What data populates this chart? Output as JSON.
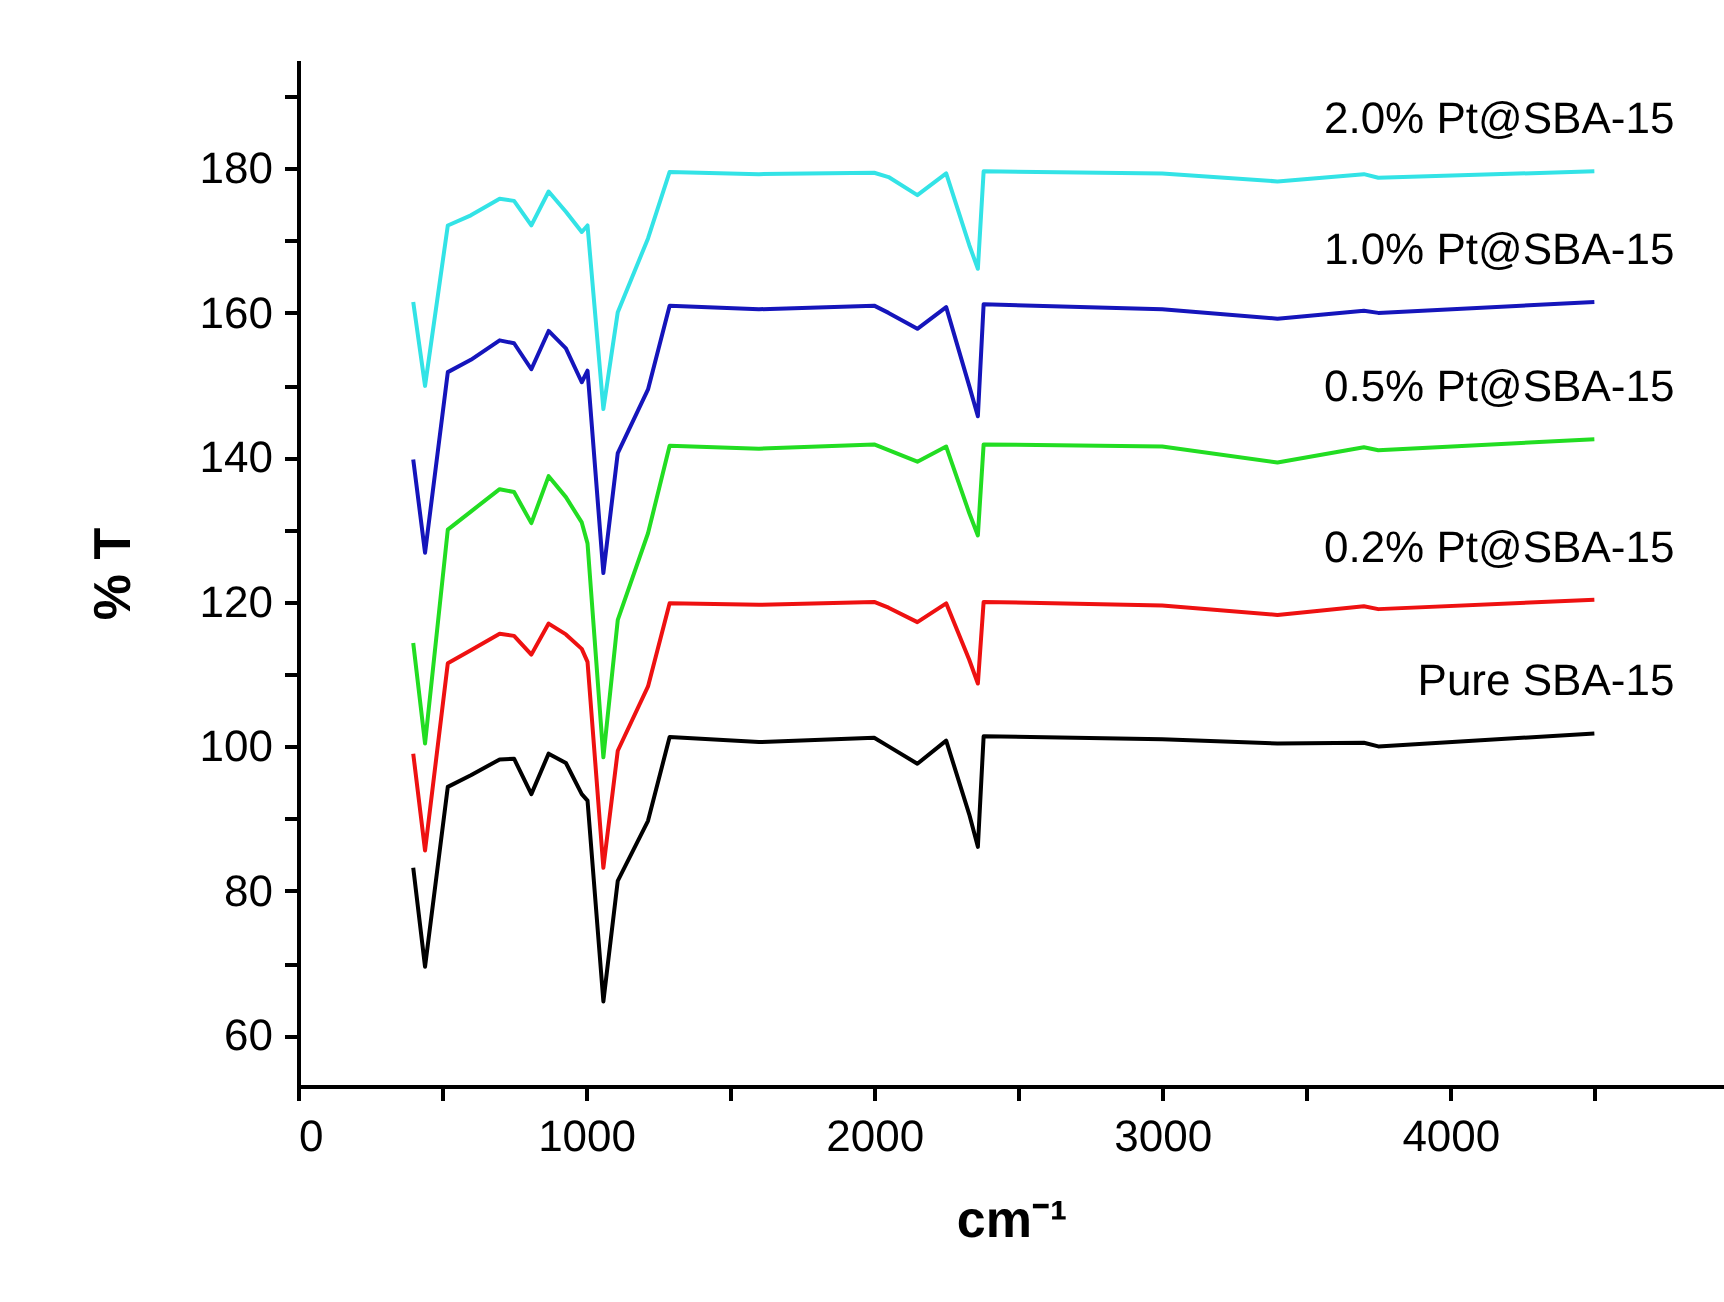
{
  "chart_data": {
    "type": "line",
    "xlabel": "cm⁻¹",
    "ylabel": "% T",
    "x": [
      400,
      441,
      520,
      600,
      700,
      750,
      810,
      870,
      930,
      985,
      1005,
      1060,
      1110,
      1215,
      1290,
      1600,
      2000,
      2050,
      2150,
      2250,
      2330,
      2360,
      2380,
      3000,
      3400,
      3700,
      3750,
      4500
    ],
    "series": [
      {
        "name": "Pure SBA-15",
        "color": "#000000",
        "values": [
          83.2,
          69.5,
          94.4,
          96,
          98.2,
          98.3,
          93.4,
          99,
          97.7,
          93.4,
          92.5,
          64.7,
          81.4,
          89.7,
          101.3,
          100.6,
          101.2,
          100,
          97.6,
          100.8,
          90.6,
          86.1,
          101.4,
          101,
          100.4,
          100.5,
          100,
          101.8
        ]
      },
      {
        "name": "0.2% Pt@SBA-15",
        "color": "#ee1111",
        "values": [
          99,
          85.6,
          111.5,
          113.3,
          115.6,
          115.3,
          112.7,
          117,
          115.5,
          113.5,
          111.7,
          83.2,
          99.4,
          108.3,
          119.8,
          119.6,
          120,
          119.2,
          117.2,
          119.8,
          112,
          108.7,
          120,
          119.5,
          118.2,
          119.4,
          119,
          120.3
        ]
      },
      {
        "name": "0.5% Pt@SBA-15",
        "color": "#22dd22",
        "values": [
          114.3,
          100.4,
          130,
          132.5,
          135.6,
          135.2,
          130.9,
          137.4,
          134.5,
          131,
          128.1,
          98.5,
          117.5,
          129.5,
          141.6,
          141.2,
          141.8,
          141,
          139.4,
          141.5,
          132.3,
          129.2,
          141.8,
          141.5,
          139.3,
          141.4,
          141,
          142.5
        ]
      },
      {
        "name": "1.0% Pt@SBA-15",
        "color": "#1515bb",
        "values": [
          139.7,
          126.8,
          151.8,
          153.5,
          156.2,
          155.8,
          152.2,
          157.5,
          155.1,
          150.4,
          152,
          124,
          140.6,
          149.4,
          161,
          160.5,
          161,
          160,
          157.8,
          160.8,
          149.9,
          145.7,
          161.2,
          160.5,
          159.2,
          160.3,
          160,
          161.5
        ]
      },
      {
        "name": "2.0% Pt@SBA-15",
        "color": "#33e3e6",
        "values": [
          161.5,
          149.9,
          172.1,
          173.5,
          175.8,
          175.5,
          172.1,
          176.8,
          174,
          171.2,
          172.1,
          146.7,
          160.1,
          170.3,
          179.5,
          179.2,
          179.4,
          178.8,
          176.3,
          179.3,
          169.4,
          166.1,
          179.6,
          179.3,
          178.2,
          179.2,
          178.7,
          179.6
        ]
      }
    ],
    "xlim": [
      0,
      4950
    ],
    "xticks": [
      0,
      {
        "value": 500,
        "label": null
      },
      1000,
      {
        "value": 1500,
        "label": null
      },
      2000,
      {
        "value": 2500,
        "label": null
      },
      3000,
      {
        "value": 3500,
        "label": null
      },
      4000,
      {
        "value": 4500,
        "label": null
      }
    ],
    "ylim": [
      53,
      195
    ],
    "yticks": [
      60,
      {
        "value": 70,
        "label": null
      },
      80,
      {
        "value": 90,
        "label": null
      },
      100,
      {
        "value": 110,
        "label": null
      },
      120,
      {
        "value": 130,
        "label": null
      },
      140,
      {
        "value": 150,
        "label": null
      },
      160,
      {
        "value": 170,
        "label": null
      },
      180,
      {
        "value": 190,
        "label": null
      }
    ]
  }
}
